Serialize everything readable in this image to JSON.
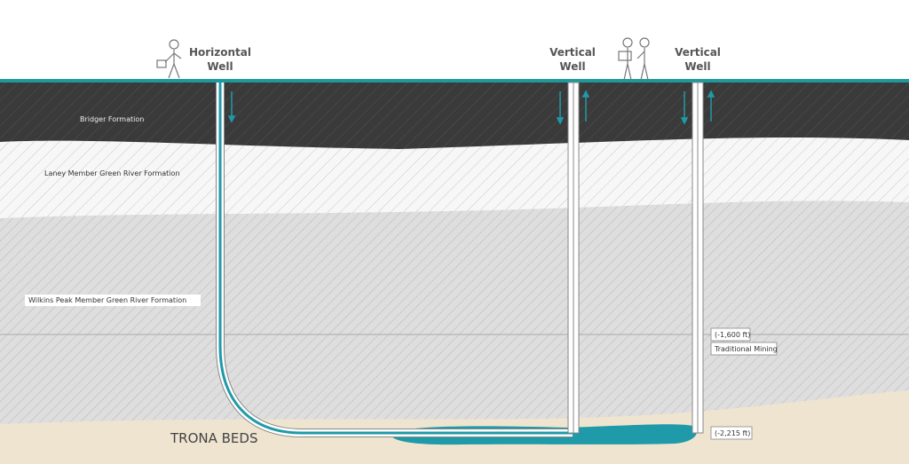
{
  "wells": [
    {
      "lines": [
        "Horizontal",
        "Well"
      ]
    },
    {
      "lines": [
        "Vertical",
        "Well"
      ]
    },
    {
      "lines": [
        "Vertical",
        "Well"
      ]
    }
  ],
  "formations": [
    "Bridger Formation",
    "Laney Member Green River Formation",
    "Wilkins Peak Member Green River Formation",
    "TRONA BEDS"
  ],
  "depth_markers": [
    {
      "depth": "(-1,600 ft)",
      "label": "Traditional Mining"
    },
    {
      "depth": "(-2,215 ft)"
    }
  ]
}
